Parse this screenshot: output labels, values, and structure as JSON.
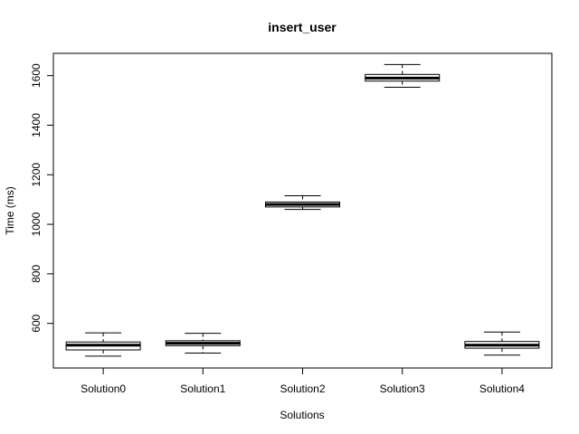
{
  "chart_data": {
    "type": "boxplot",
    "title": "insert_user",
    "xlabel": "Solutions",
    "ylabel": "Time (ms)",
    "ylim": [
      420,
      1690
    ],
    "yticks": [
      600,
      800,
      1000,
      1200,
      1400,
      1600
    ],
    "grid": false,
    "categories": [
      "Solution0",
      "Solution1",
      "Solution2",
      "Solution3",
      "Solution4"
    ],
    "boxes": [
      {
        "whisker_low": 468,
        "q1": 493,
        "median": 512,
        "q3": 525,
        "whisker_high": 562
      },
      {
        "whisker_low": 480,
        "q1": 510,
        "median": 520,
        "q3": 530,
        "whisker_high": 560
      },
      {
        "whisker_low": 1060,
        "q1": 1070,
        "median": 1080,
        "q3": 1090,
        "whisker_high": 1115
      },
      {
        "whisker_low": 1553,
        "q1": 1578,
        "median": 1590,
        "q3": 1605,
        "whisker_high": 1645
      },
      {
        "whisker_low": 472,
        "q1": 500,
        "median": 512,
        "q3": 527,
        "whisker_high": 565
      }
    ]
  }
}
